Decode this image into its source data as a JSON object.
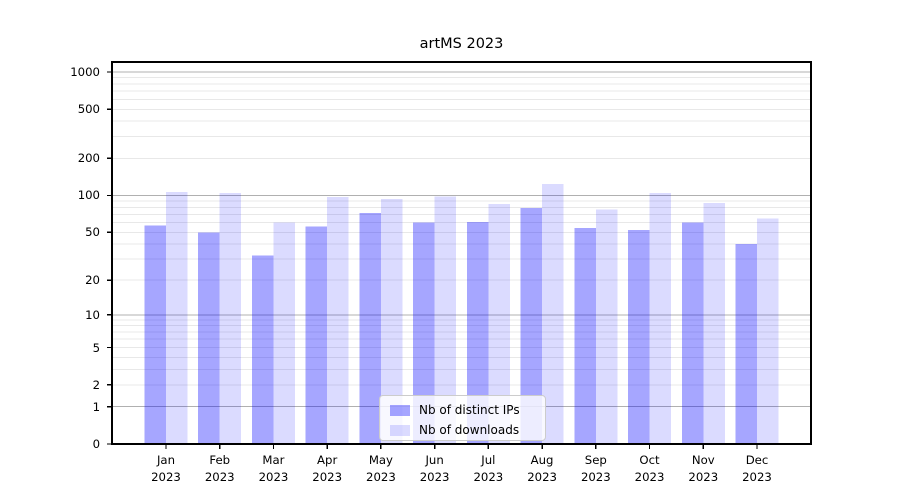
{
  "figure": {
    "background": "#ffffff"
  },
  "chart_data": {
    "type": "bar",
    "title": "artMS 2023",
    "categories": [
      "Jan",
      "Feb",
      "Mar",
      "Apr",
      "May",
      "Jun",
      "Jul",
      "Aug",
      "Sep",
      "Oct",
      "Nov",
      "Dec"
    ],
    "x_year_label": "2023",
    "series": [
      {
        "name": "Nb of distinct IPs",
        "color": "rgba(0,0,255,0.35)",
        "values": [
          57,
          50,
          32,
          56,
          72,
          60,
          61,
          79,
          54,
          52,
          60,
          40
        ]
      },
      {
        "name": "Nb of downloads",
        "color": "rgba(0,0,255,0.14)",
        "values": [
          107,
          105,
          60,
          97,
          94,
          98,
          85,
          124,
          77,
          105,
          87,
          65
        ]
      }
    ],
    "yscale": "log1p",
    "ylim": [
      0,
      1204
    ],
    "yticks": [
      1000,
      500,
      200,
      100,
      50,
      20,
      10,
      5,
      2,
      1,
      0
    ],
    "grid": "both",
    "legend_position": "lower center",
    "colors": {
      "major_grid": "#b0b0b0",
      "minor_grid": "#e8e8e8",
      "spine": "#000000"
    }
  }
}
